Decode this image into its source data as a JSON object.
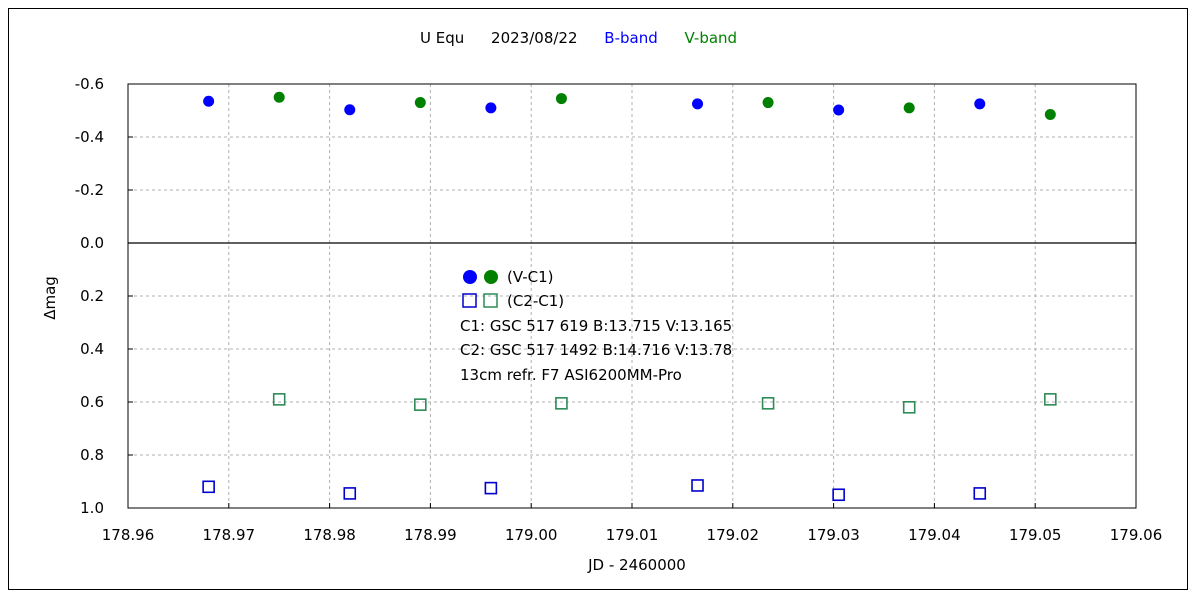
{
  "chart_data": {
    "type": "scatter",
    "title": {
      "target": "U Equ",
      "date": "2023/08/22",
      "band_b": "B-band",
      "band_v": "V-band"
    },
    "xlabel": "JD - 2460000",
    "ylabel": "Δmag",
    "xlim": [
      178.96,
      179.06
    ],
    "ylim": [
      1.0,
      -0.6
    ],
    "y_inverted": true,
    "grid": true,
    "x_ticks": [
      "178.96",
      "178.97",
      "178.98",
      "178.99",
      "179.00",
      "179.01",
      "179.02",
      "179.03",
      "179.04",
      "179.05",
      "179.06"
    ],
    "y_ticks": [
      "-0.6",
      "-0.4",
      "-0.2",
      "0.0",
      "0.2",
      "0.4",
      "0.6",
      "0.8",
      "1.0"
    ],
    "legend": {
      "vc1_label": "(V-C1)",
      "c2c1_label": "(C2-C1)",
      "note1": "C1: GSC 517 619  B:13.715  V:13.165",
      "note2": "C2: GSC 517 1492  B:14.716  V:13.78",
      "note3": "13cm refr. F7  ASI6200MM-Pro"
    },
    "colors": {
      "b_band": "#0000ff",
      "v_band": "#008000",
      "b_square": "#0000cc",
      "v_square": "#2e8b57"
    },
    "series": [
      {
        "name": "(V-C1) B-band",
        "marker": "filled-circle",
        "color": "#0000ff",
        "x": [
          178.968,
          178.982,
          178.996,
          179.0165,
          179.0305,
          179.0445
        ],
        "y": [
          -0.535,
          -0.503,
          -0.51,
          -0.525,
          -0.502,
          -0.525
        ]
      },
      {
        "name": "(V-C1) V-band",
        "marker": "filled-circle",
        "color": "#008000",
        "x": [
          178.975,
          178.989,
          179.003,
          179.0235,
          179.0375,
          179.0515
        ],
        "y": [
          -0.55,
          -0.53,
          -0.545,
          -0.53,
          -0.51,
          -0.485
        ]
      },
      {
        "name": "(C2-C1) B-band",
        "marker": "open-square",
        "color": "#0000cc",
        "x": [
          178.968,
          178.982,
          178.996,
          179.0165,
          179.0305,
          179.0445
        ],
        "y": [
          0.92,
          0.945,
          0.925,
          0.915,
          0.95,
          0.945
        ]
      },
      {
        "name": "(C2-C1) V-band",
        "marker": "open-square",
        "color": "#2e8b57",
        "x": [
          178.975,
          178.989,
          179.003,
          179.0235,
          179.0375,
          179.0515
        ],
        "y": [
          0.59,
          0.61,
          0.605,
          0.605,
          0.62,
          0.59
        ]
      }
    ]
  }
}
